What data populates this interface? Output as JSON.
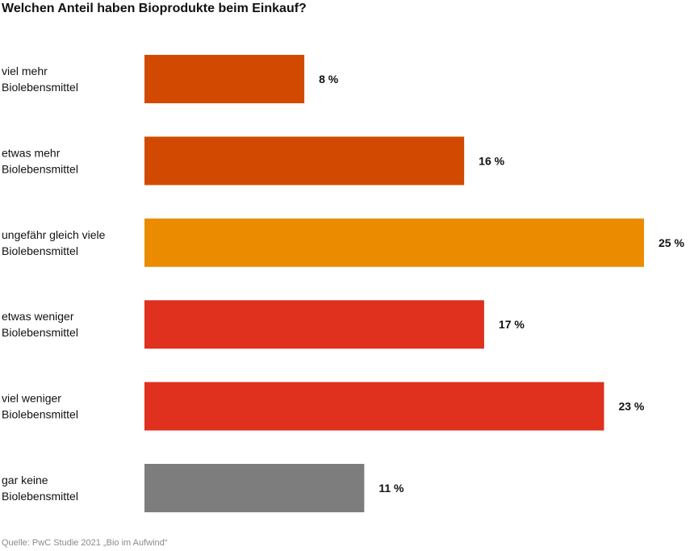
{
  "chart_data": {
    "type": "bar",
    "orientation": "horizontal",
    "title": "Welchen Anteil haben Bioprodukte beim Einkauf?",
    "source": "Quelle: PwC Studie 2021 „Bio im Aufwind“",
    "unit_suffix": " %",
    "xlim": [
      0,
      25
    ],
    "categories": [
      [
        "viel mehr",
        "Biolebensmittel"
      ],
      [
        "etwas mehr",
        "Biolebensmittel"
      ],
      [
        "ungefähr gleich viele",
        "Biolebensmittel"
      ],
      [
        "etwas weniger",
        "Biolebensmittel"
      ],
      [
        "viel weniger",
        "Biolebensmittel"
      ],
      [
        "gar keine",
        "Biolebensmittel"
      ]
    ],
    "values": [
      8,
      16,
      25,
      17,
      23,
      11
    ],
    "value_labels": [
      "8 %",
      "16 %",
      "25 %",
      "17 %",
      "23 %",
      "11 %"
    ],
    "colors": [
      "#d24a01",
      "#d24a01",
      "#eb8c00",
      "#e0301e",
      "#e0301e",
      "#7d7d7d"
    ],
    "grid": false,
    "legend": false
  }
}
